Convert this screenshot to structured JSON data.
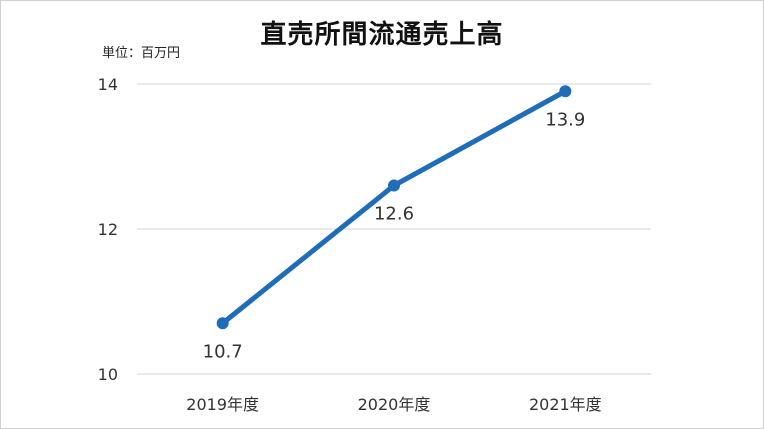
{
  "chart_data": {
    "type": "line",
    "title": "直売所間流通売上高",
    "unit_label": "単位：百万円",
    "categories": [
      "2019年度",
      "2020年度",
      "2021年度"
    ],
    "series": [
      {
        "values": [
          10.7,
          12.6,
          13.9
        ],
        "color": "#1f6db8"
      }
    ],
    "data_labels": [
      "10.7",
      "12.6",
      "13.9"
    ],
    "ylim": [
      10,
      14
    ],
    "yticks": [
      10,
      12,
      14
    ],
    "grid": true,
    "legend": "none"
  }
}
